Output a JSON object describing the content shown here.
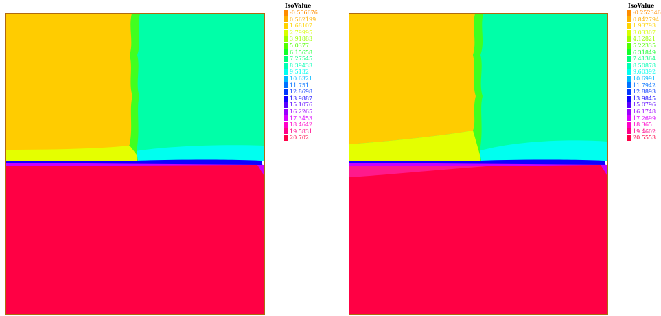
{
  "chart_data": [
    {
      "type": "heatmap",
      "legend_title": "IsoValue",
      "legend": [
        {
          "label": "-0.556676",
          "color": "#ff8c00"
        },
        {
          "label": "0.562199",
          "color": "#ffb000"
        },
        {
          "label": "1.68107",
          "color": "#ffd400"
        },
        {
          "label": "2.79995",
          "color": "#d8ff00"
        },
        {
          "label": "3.91883",
          "color": "#9cff00"
        },
        {
          "label": "5.0377",
          "color": "#52ff00"
        },
        {
          "label": "6.15658",
          "color": "#12ff2a"
        },
        {
          "label": "7.27545",
          "color": "#00ff7a"
        },
        {
          "label": "8.39433",
          "color": "#00ffb4"
        },
        {
          "label": "9.5132",
          "color": "#00fff0"
        },
        {
          "label": "10.6321",
          "color": "#00b8ff"
        },
        {
          "label": "11.751",
          "color": "#0072ff"
        },
        {
          "label": "12.8698",
          "color": "#0036ff"
        },
        {
          "label": "13.9887",
          "color": "#1000ff"
        },
        {
          "label": "15.1076",
          "color": "#5a00ff"
        },
        {
          "label": "16.2265",
          "color": "#9a00ff"
        },
        {
          "label": "17.3453",
          "color": "#d800ff"
        },
        {
          "label": "18.4642",
          "color": "#ff00c8"
        },
        {
          "label": "19.5831",
          "color": "#ff0088"
        },
        {
          "label": "20.702",
          "color": "#ff0048"
        }
      ]
    },
    {
      "type": "heatmap",
      "legend_title": "IsoValue",
      "legend": [
        {
          "label": "-0.252346",
          "color": "#ff8c00"
        },
        {
          "label": "0.842794",
          "color": "#ffb000"
        },
        {
          "label": "1.93793",
          "color": "#ffd400"
        },
        {
          "label": "3.03307",
          "color": "#d8ff00"
        },
        {
          "label": "4.12821",
          "color": "#9cff00"
        },
        {
          "label": "5.22335",
          "color": "#52ff00"
        },
        {
          "label": "6.31849",
          "color": "#12ff2a"
        },
        {
          "label": "7.41364",
          "color": "#00ff7a"
        },
        {
          "label": "8.50878",
          "color": "#00ffb4"
        },
        {
          "label": "9.60392",
          "color": "#00fff0"
        },
        {
          "label": "10.6991",
          "color": "#00b8ff"
        },
        {
          "label": "11.7942",
          "color": "#0072ff"
        },
        {
          "label": "12.8893",
          "color": "#0036ff"
        },
        {
          "label": "13.9845",
          "color": "#1000ff"
        },
        {
          "label": "15.0796",
          "color": "#5a00ff"
        },
        {
          "label": "16.1748",
          "color": "#9a00ff"
        },
        {
          "label": "17.2699",
          "color": "#d800ff"
        },
        {
          "label": "18.365",
          "color": "#ff00c8"
        },
        {
          "label": "19.4602",
          "color": "#ff0088"
        },
        {
          "label": "20.5553",
          "color": "#ff0048"
        }
      ]
    }
  ],
  "colors": {
    "upper_left_region": "#ffcc00",
    "upper_right_region": "#00ffa8",
    "lower_region": "#ff0044",
    "frame": "#b06a10"
  }
}
